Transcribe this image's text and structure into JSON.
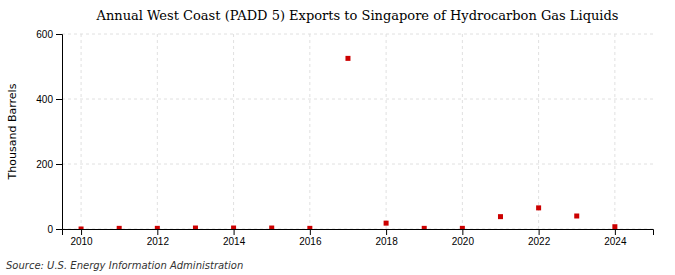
{
  "chart_data": {
    "type": "scatter",
    "title": "Annual West Coast (PADD 5) Exports to Singapore of Hydrocarbon Gas Liquids",
    "ylabel": "Thousand Barrels",
    "source": "Source: U.S. Energy Information Administration",
    "x": [
      2010,
      2011,
      2012,
      2013,
      2014,
      2015,
      2016,
      2017,
      2018,
      2019,
      2020,
      2021,
      2022,
      2023,
      2024
    ],
    "values": [
      0,
      2,
      2,
      3,
      3,
      3,
      2,
      525,
      18,
      2,
      2,
      38,
      65,
      40,
      7
    ],
    "color": "#cc0000",
    "marker": "square",
    "xlim": [
      2009.5,
      2025.0
    ],
    "ylim": [
      0,
      600
    ],
    "xticks": [
      2010,
      2012,
      2014,
      2016,
      2018,
      2020,
      2022,
      2024
    ],
    "yticks": [
      0,
      200,
      400,
      600
    ],
    "grid": true
  }
}
